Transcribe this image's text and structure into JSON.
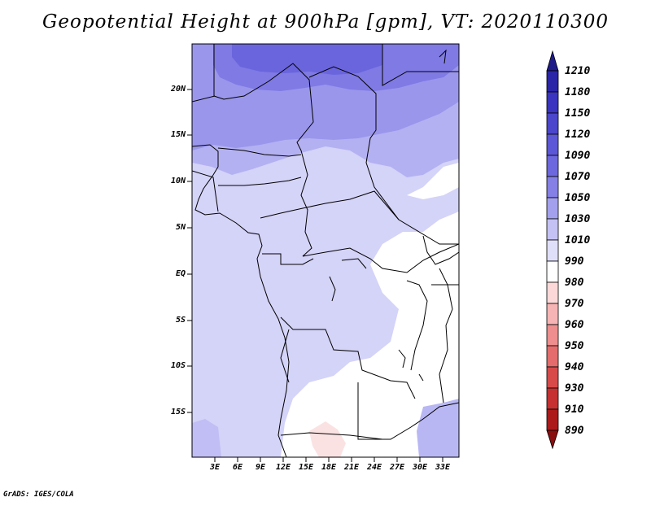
{
  "title": "Geopotential Height at 900hPa [gpm], VT: 2020110300",
  "lat_labels": [
    "20N",
    "15N",
    "10N",
    "5N",
    "EQ",
    "5S",
    "10S",
    "15S"
  ],
  "lon_labels": [
    "3E",
    "6E",
    "9E",
    "12E",
    "15E",
    "18E",
    "21E",
    "24E",
    "27E",
    "30E",
    "33E"
  ],
  "colorbar": {
    "levels": [
      "1210",
      "1180",
      "1150",
      "1120",
      "1090",
      "1070",
      "1050",
      "1030",
      "1010",
      "990",
      "980",
      "970",
      "960",
      "950",
      "940",
      "930",
      "910",
      "890"
    ],
    "colors": [
      "#1f1a8a",
      "#2b25a8",
      "#3a34c0",
      "#4b46cc",
      "#5c57d6",
      "#6d68de",
      "#8480e6",
      "#a3a0ee",
      "#c4c2f4",
      "#e0dffa",
      "#ffffff",
      "#fcd8d8",
      "#f7b4b4",
      "#ee8e8e",
      "#e46c6c",
      "#d84a4a",
      "#c63030",
      "#ac1a1a",
      "#8a0e0e"
    ]
  },
  "credit": "GrADS: IGES/COLA"
}
